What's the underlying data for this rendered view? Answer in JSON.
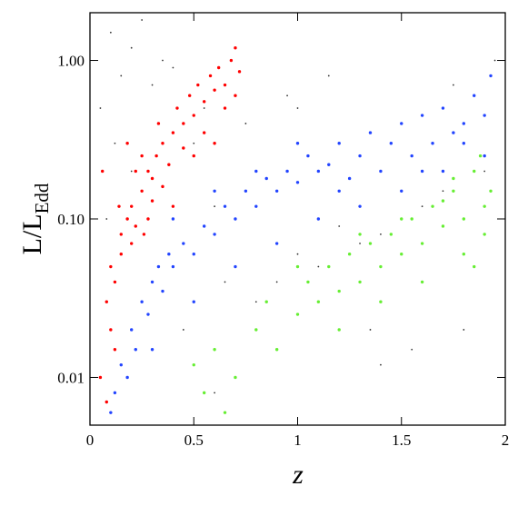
{
  "chart_data": {
    "type": "scatter",
    "xlabel": "z",
    "ylabel": {
      "text": "L/L",
      "subscript": "Edd"
    },
    "xlim": [
      0,
      2
    ],
    "xticks": [
      0,
      0.5,
      1,
      1.5,
      2
    ],
    "ylim": [
      0.005,
      2
    ],
    "ylog": true,
    "yticks": [
      {
        "value": 0.01,
        "label": "0.01"
      },
      {
        "value": 0.1,
        "label": "0.10"
      },
      {
        "value": 1,
        "label": "1.00"
      }
    ],
    "series": [
      {
        "color": "#333333",
        "x": [
          0.05,
          0.1,
          0.15,
          0.2,
          0.3,
          0.4,
          0.5,
          0.6,
          0.7,
          0.8,
          0.9,
          1.0,
          1.1,
          1.2,
          1.3,
          1.4,
          1.5,
          1.6,
          1.7,
          1.8,
          1.9,
          0.08,
          0.12,
          0.25,
          0.35,
          0.45,
          0.55,
          0.65,
          0.75,
          0.95,
          1.15,
          1.35,
          1.55,
          1.75,
          1.95,
          0.2,
          0.6,
          1.0,
          1.4,
          1.8
        ],
        "y": [
          0.5,
          1.5,
          0.8,
          1.2,
          0.7,
          0.9,
          0.3,
          0.12,
          0.05,
          0.03,
          0.04,
          0.06,
          0.05,
          0.09,
          0.07,
          0.08,
          0.1,
          0.12,
          0.15,
          0.3,
          0.2,
          0.1,
          0.3,
          1.8,
          1.0,
          0.02,
          0.5,
          0.04,
          0.4,
          0.6,
          0.8,
          0.02,
          0.015,
          0.7,
          1.0,
          0.2,
          0.008,
          0.5,
          0.012,
          0.02
        ]
      },
      {
        "color": "#ff0000",
        "x": [
          0.05,
          0.08,
          0.1,
          0.12,
          0.15,
          0.18,
          0.2,
          0.22,
          0.25,
          0.28,
          0.3,
          0.32,
          0.35,
          0.38,
          0.4,
          0.42,
          0.45,
          0.48,
          0.5,
          0.52,
          0.55,
          0.58,
          0.6,
          0.62,
          0.65,
          0.68,
          0.7,
          0.72,
          0.1,
          0.15,
          0.2,
          0.25,
          0.3,
          0.12,
          0.18,
          0.22,
          0.28,
          0.35,
          0.4,
          0.45,
          0.5,
          0.55,
          0.6,
          0.65,
          0.08,
          0.06,
          0.14,
          0.26,
          0.33,
          0.7
        ],
        "y": [
          0.01,
          0.03,
          0.05,
          0.04,
          0.08,
          0.1,
          0.12,
          0.09,
          0.15,
          0.2,
          0.18,
          0.25,
          0.3,
          0.22,
          0.35,
          0.5,
          0.4,
          0.6,
          0.45,
          0.7,
          0.55,
          0.8,
          0.65,
          0.9,
          0.7,
          1.0,
          1.2,
          0.85,
          0.02,
          0.06,
          0.07,
          0.25,
          0.13,
          0.015,
          0.3,
          0.2,
          0.1,
          0.16,
          0.12,
          0.28,
          0.25,
          0.35,
          0.3,
          0.5,
          0.007,
          0.2,
          0.12,
          0.08,
          0.4,
          0.6
        ]
      },
      {
        "color": "#2244ff",
        "x": [
          0.1,
          0.12,
          0.15,
          0.18,
          0.2,
          0.22,
          0.25,
          0.28,
          0.3,
          0.33,
          0.35,
          0.38,
          0.4,
          0.45,
          0.5,
          0.55,
          0.6,
          0.65,
          0.7,
          0.75,
          0.8,
          0.85,
          0.9,
          0.95,
          1.0,
          1.05,
          1.1,
          1.15,
          1.2,
          1.25,
          1.3,
          1.35,
          1.4,
          1.45,
          1.5,
          1.55,
          1.6,
          1.65,
          1.7,
          1.75,
          1.8,
          1.85,
          1.9,
          1.93,
          0.3,
          0.5,
          0.7,
          0.9,
          1.1,
          1.3,
          1.5,
          1.7,
          1.9,
          0.4,
          0.6,
          0.8,
          1.0,
          1.2,
          1.6,
          1.8
        ],
        "y": [
          0.006,
          0.008,
          0.012,
          0.01,
          0.02,
          0.015,
          0.03,
          0.025,
          0.04,
          0.05,
          0.035,
          0.06,
          0.05,
          0.07,
          0.06,
          0.09,
          0.08,
          0.12,
          0.1,
          0.15,
          0.12,
          0.18,
          0.15,
          0.2,
          0.17,
          0.25,
          0.2,
          0.22,
          0.3,
          0.18,
          0.25,
          0.35,
          0.2,
          0.3,
          0.4,
          0.25,
          0.45,
          0.3,
          0.5,
          0.35,
          0.4,
          0.6,
          0.45,
          0.8,
          0.015,
          0.03,
          0.05,
          0.07,
          0.1,
          0.12,
          0.15,
          0.2,
          0.25,
          0.1,
          0.15,
          0.2,
          0.3,
          0.15,
          0.2,
          0.3
        ]
      },
      {
        "color": "#66ee33",
        "x": [
          0.5,
          0.55,
          0.6,
          0.65,
          0.7,
          0.8,
          0.85,
          0.9,
          1.0,
          1.05,
          1.1,
          1.15,
          1.2,
          1.25,
          1.3,
          1.35,
          1.4,
          1.45,
          1.5,
          1.55,
          1.6,
          1.65,
          1.7,
          1.75,
          1.8,
          1.85,
          1.9,
          1.93,
          1.2,
          1.4,
          1.6,
          1.8,
          1.9,
          1.5,
          1.7,
          1.85,
          1.0,
          1.3,
          1.75,
          1.88
        ],
        "y": [
          0.012,
          0.008,
          0.015,
          0.006,
          0.01,
          0.02,
          0.03,
          0.015,
          0.025,
          0.04,
          0.03,
          0.05,
          0.035,
          0.06,
          0.04,
          0.07,
          0.05,
          0.08,
          0.06,
          0.1,
          0.07,
          0.12,
          0.09,
          0.15,
          0.1,
          0.2,
          0.12,
          0.15,
          0.02,
          0.03,
          0.04,
          0.06,
          0.08,
          0.1,
          0.13,
          0.05,
          0.05,
          0.08,
          0.18,
          0.25
        ]
      }
    ]
  }
}
